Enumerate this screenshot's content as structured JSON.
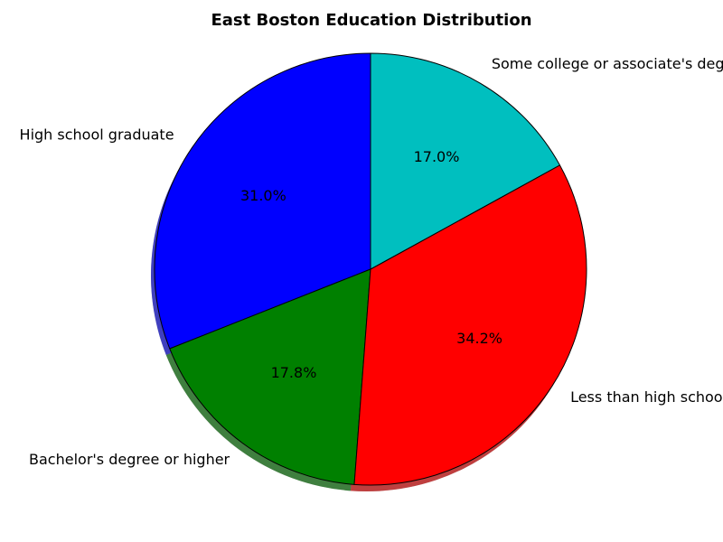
{
  "chart_data": {
    "type": "pie",
    "title": "East Boston Education Distribution",
    "start_angle_deg": 90,
    "direction": "counterclockwise",
    "shadow": true,
    "slices": [
      {
        "label": "High school graduate",
        "value": 31.0,
        "pct_label": "31.0%",
        "color": "#0000ff"
      },
      {
        "label": "Bachelor's degree or higher",
        "value": 17.8,
        "pct_label": "17.8%",
        "color": "#008000"
      },
      {
        "label": "Less than high school",
        "value": 34.2,
        "pct_label": "34.2%",
        "color": "#ff0000"
      },
      {
        "label": "Some college or associate's degree",
        "value": 17.0,
        "pct_label": "17.0%",
        "color": "#00bfbf"
      }
    ]
  }
}
